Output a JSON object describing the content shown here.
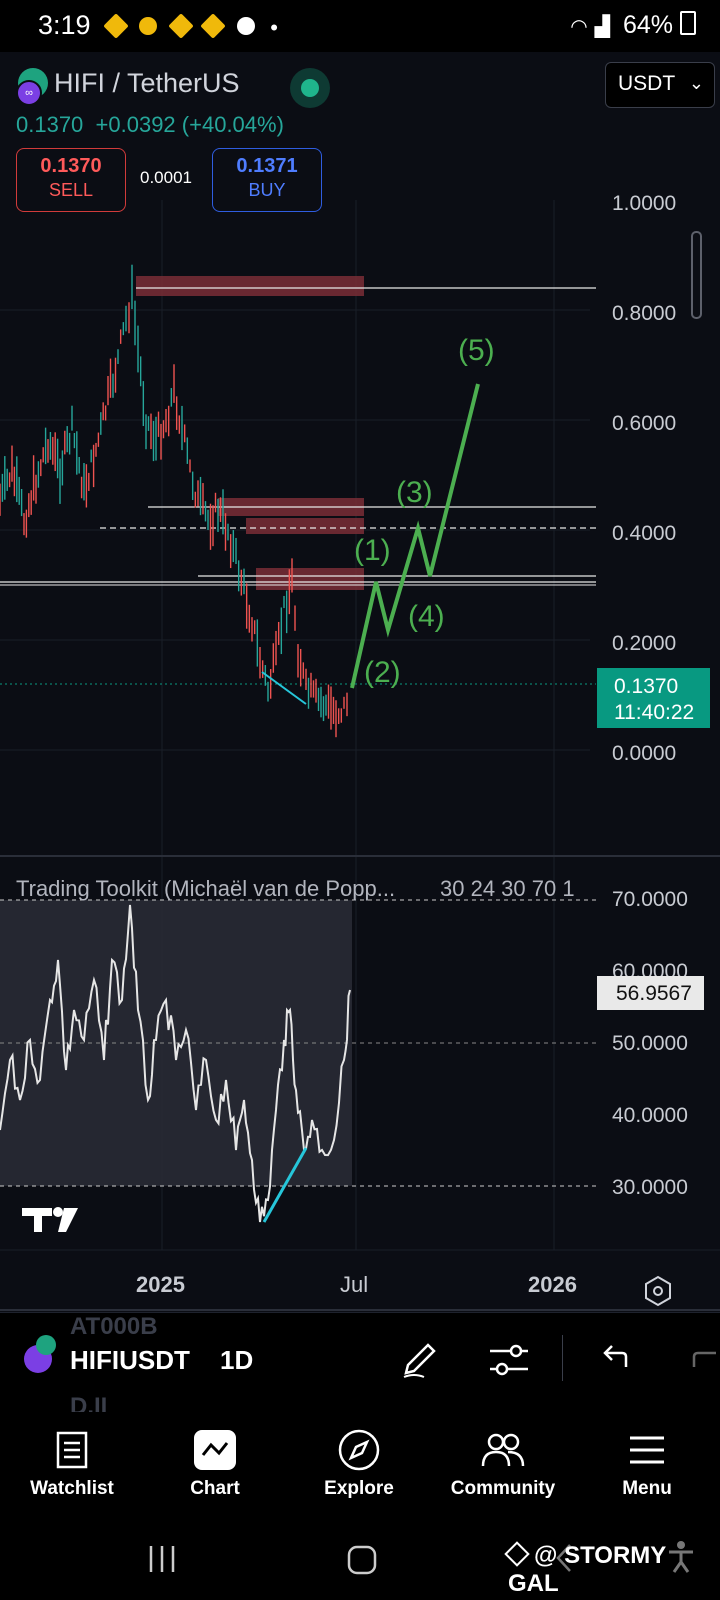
{
  "status_bar": {
    "time": "3:19",
    "battery": "64%",
    "dot": "•"
  },
  "header": {
    "pair": "HIFI / TetherUS",
    "currency": "USDT",
    "price": "0.1370",
    "change": "+0.0392",
    "change_pct": "(+40.04%)",
    "sell": {
      "price": "0.1370",
      "label": "SELL"
    },
    "buy": {
      "price": "0.1371",
      "label": "BUY"
    },
    "spread": "0.0001"
  },
  "chart": {
    "price_axis": [
      "1.0000",
      "0.8000",
      "0.6000",
      "0.4000",
      "0.2000",
      "0.0000"
    ],
    "price_tag": {
      "price": "0.1370",
      "countdown": "11:40:22"
    },
    "wave_labels": [
      "(1)",
      "(2)",
      "(3)",
      "(4)",
      "(5)"
    ],
    "indicator": {
      "title": "Trading Toolkit (Michaël van de Popp...",
      "params": "30 24 30 70 1",
      "axis": [
        "70.0000",
        "60.0000",
        "50.0000",
        "40.0000",
        "30.0000"
      ],
      "value_tag": "56.9567"
    },
    "time_axis": [
      "2025",
      "Jul",
      "2026"
    ],
    "logo": "TV",
    "colors": {
      "up": "#26a69a",
      "down": "#ef5350",
      "wave": "#4caf50",
      "zone": "#7a2e36",
      "accent": "#089981"
    }
  },
  "toolbar": {
    "symbol": "HIFIUSDT",
    "interval": "1D",
    "ghost_top": "AT000B",
    "ghost_bottom": "D.II"
  },
  "nav": {
    "items": [
      "Watchlist",
      "Chart",
      "Explore",
      "Community",
      "Menu"
    ]
  },
  "watermark": "@ STORMY GAL"
}
